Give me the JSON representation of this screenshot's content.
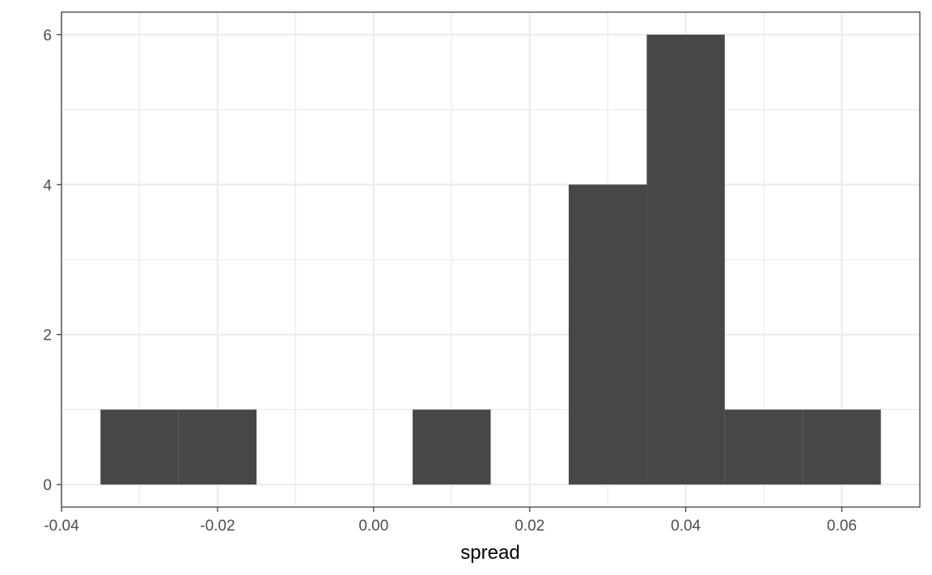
{
  "chart_data": {
    "type": "bar",
    "subtype": "histogram",
    "title": "",
    "xlabel": "spread",
    "ylabel": "",
    "xlim": [
      -0.04,
      0.07
    ],
    "ylim": [
      -0.3,
      6.3
    ],
    "grid": true,
    "theme": "bw",
    "bar_color": "#474747",
    "x_ticks": [
      {
        "value": -0.04,
        "label": "-0.04"
      },
      {
        "value": -0.02,
        "label": "-0.02"
      },
      {
        "value": 0.0,
        "label": "0.00"
      },
      {
        "value": 0.02,
        "label": "0.02"
      },
      {
        "value": 0.04,
        "label": "0.04"
      },
      {
        "value": 0.06,
        "label": "0.06"
      }
    ],
    "y_ticks": [
      {
        "value": 0,
        "label": "0"
      },
      {
        "value": 2,
        "label": "2"
      },
      {
        "value": 4,
        "label": "4"
      },
      {
        "value": 6,
        "label": "6"
      }
    ],
    "bins": [
      {
        "x_start": -0.035,
        "x_end": -0.025,
        "count": 1
      },
      {
        "x_start": -0.025,
        "x_end": -0.015,
        "count": 1
      },
      {
        "x_start": -0.015,
        "x_end": -0.005,
        "count": 0
      },
      {
        "x_start": -0.005,
        "x_end": 0.005,
        "count": 0
      },
      {
        "x_start": 0.005,
        "x_end": 0.015,
        "count": 1
      },
      {
        "x_start": 0.015,
        "x_end": 0.025,
        "count": 0
      },
      {
        "x_start": 0.025,
        "x_end": 0.035,
        "count": 4
      },
      {
        "x_start": 0.035,
        "x_end": 0.045,
        "count": 6
      },
      {
        "x_start": 0.045,
        "x_end": 0.055,
        "count": 1
      },
      {
        "x_start": 0.055,
        "x_end": 0.065,
        "count": 1
      }
    ]
  }
}
